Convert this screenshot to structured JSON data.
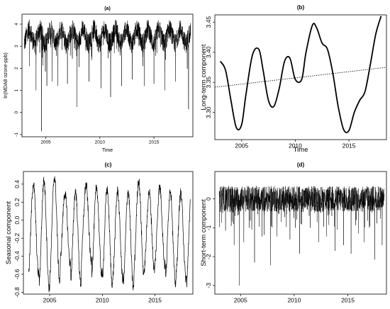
{
  "chart_data": [
    {
      "panel": "(a)",
      "type": "line",
      "title": "(a)",
      "xlabel": "Time",
      "ylabel": "ln(MDA8 ozone-ppb)",
      "xlim": [
        2002.8,
        2018.6
      ],
      "ylim": [
        -1.1,
        4.45
      ],
      "xticks": [
        2005,
        2010,
        2015
      ],
      "yticks": [
        -1,
        0,
        1,
        2,
        3,
        4
      ],
      "x_start": 2003.0,
      "x_end": 2018.4,
      "baseline_upper": 3.9,
      "baseline_lower": 3.0,
      "dips": [
        [
          2003.5,
          2.1
        ],
        [
          2004.1,
          1.0
        ],
        [
          2004.6,
          -0.85
        ],
        [
          2005.1,
          1.2
        ],
        [
          2005.6,
          1.4
        ],
        [
          2006.1,
          1.2
        ],
        [
          2007.0,
          1.3
        ],
        [
          2007.9,
          0.25
        ],
        [
          2009.0,
          1.4
        ],
        [
          2010.1,
          1.1
        ],
        [
          2011.0,
          0.7
        ],
        [
          2012.0,
          1.2
        ],
        [
          2013.0,
          1.5
        ],
        [
          2014.1,
          1.2
        ],
        [
          2015.0,
          1.3
        ],
        [
          2016.0,
          1.0
        ],
        [
          2017.0,
          1.4
        ],
        [
          2018.2,
          0.15
        ]
      ]
    },
    {
      "panel": "(b)",
      "type": "line",
      "title": "(b)",
      "xlabel": "Time",
      "ylabel": "Long-term component",
      "xlim": [
        2002.5,
        2018.5
      ],
      "ylim": [
        3.255,
        3.462
      ],
      "xticks": [
        2005,
        2010,
        2015
      ],
      "yticks": [
        3.3,
        3.35,
        3.4,
        3.45
      ],
      "yticklabels": [
        "3.30",
        "3.35",
        "3.40",
        "3.45"
      ],
      "x": [
        2003.0,
        2003.5,
        2004.0,
        2004.5,
        2005.0,
        2005.4,
        2006.0,
        2006.6,
        2007.0,
        2007.5,
        2008.0,
        2008.5,
        2009.0,
        2009.5,
        2010.0,
        2010.6,
        2011.0,
        2011.6,
        2012.0,
        2012.5,
        2013.0,
        2013.5,
        2014.0,
        2014.5,
        2015.0,
        2015.5,
        2016.0,
        2016.5,
        2017.0,
        2017.5,
        2018.0
      ],
      "y": [
        3.385,
        3.37,
        3.32,
        3.275,
        3.28,
        3.33,
        3.395,
        3.405,
        3.37,
        3.32,
        3.31,
        3.34,
        3.385,
        3.39,
        3.355,
        3.355,
        3.4,
        3.445,
        3.44,
        3.415,
        3.405,
        3.365,
        3.31,
        3.272,
        3.27,
        3.3,
        3.32,
        3.335,
        3.38,
        3.43,
        3.46
      ],
      "trend": {
        "x": [
          2002.5,
          2018.5
        ],
        "y": [
          3.342,
          3.375
        ]
      }
    },
    {
      "panel": "(c)",
      "type": "line",
      "title": "(c)",
      "xlabel": "",
      "ylabel": "Seasonal component",
      "xlim": [
        2002.5,
        2018.6
      ],
      "ylim": [
        -0.82,
        0.54
      ],
      "xticks": [
        2005,
        2010,
        2015
      ],
      "yticks": [
        -0.8,
        -0.6,
        -0.4,
        -0.2,
        0.0,
        0.2,
        0.4
      ],
      "yticklabels": [
        "-0.8",
        "-0.6",
        "-0.4",
        "-0.2",
        "0.0",
        "0.2",
        "0.4"
      ],
      "x_start": 2003.0,
      "x_end": 2018.35,
      "peaks": [
        0.4,
        0.44,
        0.48,
        0.3,
        0.32,
        0.39,
        0.36,
        0.34,
        0.32,
        0.32,
        0.44,
        0.31,
        0.37,
        0.34,
        0.3,
        0.3
      ],
      "troughs": [
        -0.6,
        -0.75,
        -0.68,
        -0.48,
        -0.7,
        -0.45,
        -0.6,
        -0.7,
        -0.65,
        -0.75,
        -0.6,
        -0.55,
        -0.5,
        -0.7,
        -0.65,
        -0.75
      ]
    },
    {
      "panel": "(d)",
      "type": "line",
      "title": "(d)",
      "xlabel": "",
      "ylabel": "Short-term component",
      "xlim": [
        2002.6,
        2018.6
      ],
      "ylim": [
        -3.3,
        0.95
      ],
      "xticks": [
        2005,
        2010,
        2015
      ],
      "yticks": [
        -3,
        -2,
        -1,
        0
      ],
      "x_start": 2003.0,
      "x_end": 2018.4,
      "noise_upper": 0.45,
      "noise_lower": -0.45,
      "spikes": [
        [
          2003.6,
          -1.1
        ],
        [
          2004.4,
          -1.6
        ],
        [
          2004.9,
          -3.0
        ],
        [
          2005.3,
          -1.5
        ],
        [
          2005.8,
          -1.0
        ],
        [
          2006.3,
          -2.2
        ],
        [
          2007.0,
          -1.3
        ],
        [
          2007.8,
          -2.3
        ],
        [
          2008.4,
          -1.3
        ],
        [
          2008.8,
          -0.8
        ],
        [
          2009.6,
          -1.4
        ],
        [
          2010.1,
          -1.0
        ],
        [
          2010.5,
          -1.9
        ],
        [
          2011.5,
          -1.0
        ],
        [
          2012.3,
          -1.5
        ],
        [
          2013.0,
          -1.3
        ],
        [
          2013.8,
          -1.8
        ],
        [
          2014.6,
          -1.6
        ],
        [
          2015.3,
          -1.9
        ],
        [
          2016.0,
          -1.2
        ],
        [
          2016.5,
          -1.5
        ],
        [
          2017.0,
          -1.0
        ],
        [
          2017.5,
          -2.1
        ],
        [
          2018.2,
          -1.6
        ]
      ]
    }
  ]
}
